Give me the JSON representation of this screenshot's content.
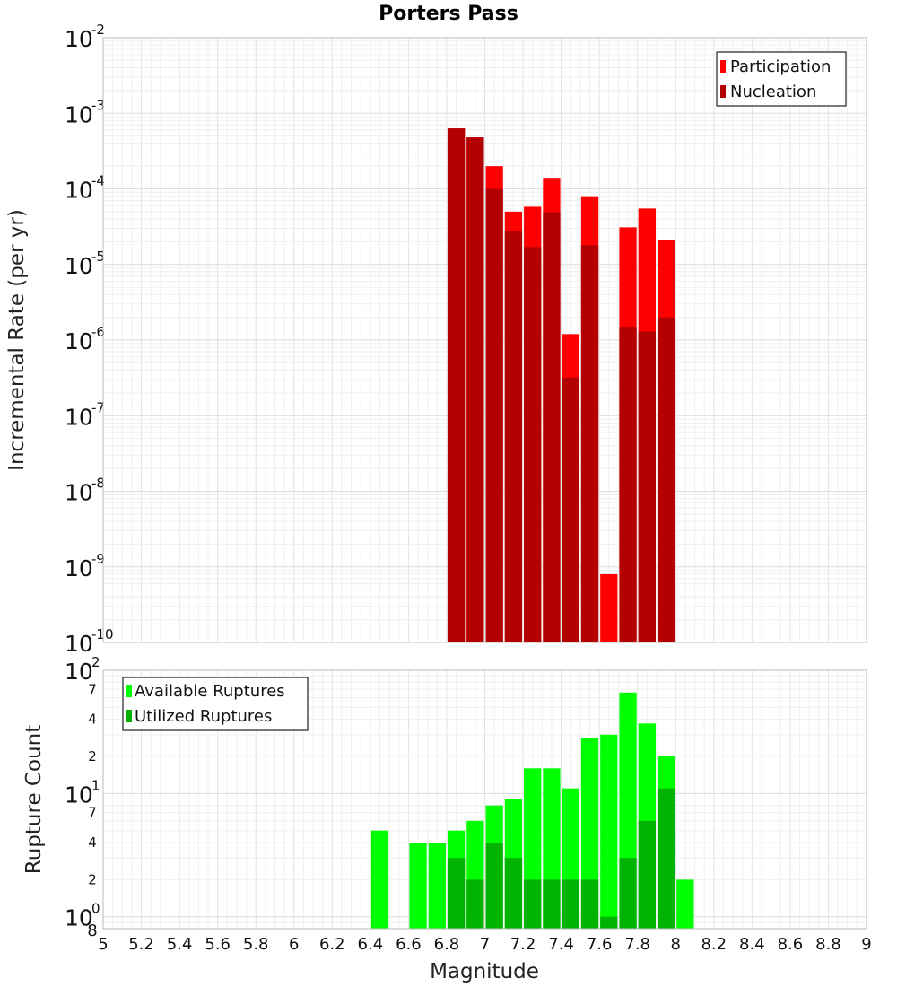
{
  "chart_data": [
    {
      "type": "bar",
      "title": "Porters Pass",
      "ylabel": "Incremental Rate (per yr)",
      "xlabel": "",
      "yscale": "log",
      "ylim": [
        1e-10,
        0.01
      ],
      "xlim": [
        5,
        9
      ],
      "y_tick_mantissa": [
        "10",
        "10",
        "10",
        "10",
        "10",
        "10",
        "10",
        "10",
        "10"
      ],
      "y_tick_exponents": [
        "-10",
        "-9",
        "-8",
        "-7",
        "-6",
        "-5",
        "-4",
        "-3",
        "-2"
      ],
      "bin_width": 0.1,
      "overlay": true,
      "grid": true,
      "legend_position": "top-right",
      "x": [
        6.85,
        6.95,
        7.05,
        7.15,
        7.25,
        7.35,
        7.45,
        7.55,
        7.65,
        7.75,
        7.85,
        7.95
      ],
      "series": [
        {
          "name": "Participation",
          "color": "#ff0000",
          "values": [
            0.00063,
            0.00048,
            0.0002,
            5e-05,
            5.8e-05,
            0.00014,
            1.2e-06,
            8e-05,
            8e-10,
            3.1e-05,
            5.5e-05,
            2.1e-05
          ]
        },
        {
          "name": "Nucleation",
          "color": "#b30000",
          "values": [
            0.00063,
            0.00048,
            0.0001,
            2.8e-05,
            1.7e-05,
            4.9e-05,
            3.2e-07,
            1.8e-05,
            null,
            1.5e-06,
            1.3e-06,
            2e-06
          ]
        }
      ]
    },
    {
      "type": "bar",
      "title": "",
      "ylabel": "Rupture Count",
      "xlabel": "Magnitude",
      "yscale": "log",
      "ylim": [
        0.8,
        100
      ],
      "xlim": [
        5,
        9
      ],
      "xticks": [
        "5",
        "5.2",
        "5.4",
        "5.6",
        "5.8",
        "6",
        "6.2",
        "6.4",
        "6.6",
        "6.8",
        "7",
        "7.2",
        "7.4",
        "7.6",
        "7.8",
        "8",
        "8.2",
        "8.4",
        "8.6",
        "8.8",
        "9"
      ],
      "y_major_ticks": [
        {
          "value": 1,
          "mantissa": "10",
          "exponent": "0"
        },
        {
          "value": 10,
          "mantissa": "10",
          "exponent": "1"
        },
        {
          "value": 100,
          "mantissa": "10",
          "exponent": "2"
        }
      ],
      "y_minor_ticks": [
        {
          "value": 0.8,
          "label": "8"
        },
        {
          "value": 2,
          "label": "2"
        },
        {
          "value": 4,
          "label": "4"
        },
        {
          "value": 7,
          "label": "7"
        },
        {
          "value": 20,
          "label": "2"
        },
        {
          "value": 40,
          "label": "4"
        },
        {
          "value": 70,
          "label": "7"
        }
      ],
      "bin_width": 0.1,
      "overlay": true,
      "grid": true,
      "legend_position": "top-left",
      "x": [
        6.45,
        6.55,
        6.65,
        6.75,
        6.85,
        6.95,
        7.05,
        7.15,
        7.25,
        7.35,
        7.45,
        7.55,
        7.65,
        7.75,
        7.85,
        7.95,
        8.05
      ],
      "series": [
        {
          "name": "Available Ruptures",
          "color": "#00ff00",
          "values": [
            5,
            null,
            4,
            4,
            5,
            6,
            8,
            9,
            16,
            16,
            11,
            28,
            30,
            66,
            37,
            20,
            2
          ]
        },
        {
          "name": "Utilized Ruptures",
          "color": "#00b300",
          "values": [
            null,
            null,
            null,
            null,
            3,
            2,
            4,
            3,
            2,
            2,
            2,
            2,
            1,
            3,
            6,
            11,
            null
          ]
        }
      ]
    }
  ]
}
